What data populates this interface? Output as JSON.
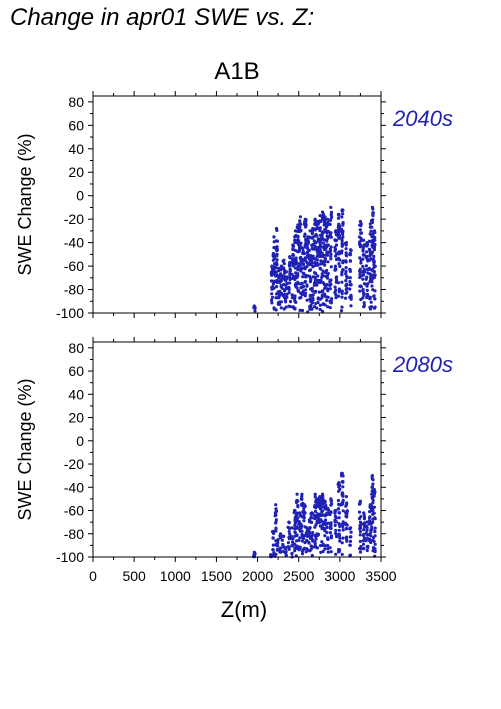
{
  "title": "Change in apr01 SWE vs. Z:",
  "colors": {
    "points": "#1f22b4",
    "period_label": "#1f22b4",
    "axes": "#000000"
  },
  "chart_data": [
    {
      "type": "scatter",
      "title": "A1B",
      "period_label": "2040s",
      "ylabel": "SWE Change (%)",
      "xlabel": "",
      "xlim": [
        0,
        3500
      ],
      "ylim": [
        -100,
        85
      ],
      "xticks": [],
      "yticks": [
        -100,
        -80,
        -60,
        -40,
        -20,
        0,
        20,
        40,
        60,
        80
      ],
      "grid": false,
      "clusters": [
        {
          "x": 1960,
          "ymax": -94
        },
        {
          "x": 2175,
          "ymax": -60
        },
        {
          "x": 2200,
          "ymax": -35
        },
        {
          "x": 2230,
          "ymax": -28
        },
        {
          "x": 2260,
          "ymax": -62
        },
        {
          "x": 2290,
          "ymax": -60
        },
        {
          "x": 2320,
          "ymax": -55
        },
        {
          "x": 2350,
          "ymax": -65
        },
        {
          "x": 2390,
          "ymax": -52
        },
        {
          "x": 2430,
          "ymax": -42
        },
        {
          "x": 2460,
          "ymax": -30
        },
        {
          "x": 2490,
          "ymax": -25
        },
        {
          "x": 2520,
          "ymax": -18
        },
        {
          "x": 2550,
          "ymax": -45
        },
        {
          "x": 2580,
          "ymax": -20
        },
        {
          "x": 2610,
          "ymax": -35
        },
        {
          "x": 2640,
          "ymax": -30
        },
        {
          "x": 2670,
          "ymax": -28
        },
        {
          "x": 2700,
          "ymax": -20
        },
        {
          "x": 2730,
          "ymax": -22
        },
        {
          "x": 2760,
          "ymax": -17
        },
        {
          "x": 2790,
          "ymax": -14
        },
        {
          "x": 2820,
          "ymax": -18
        },
        {
          "x": 2850,
          "ymax": -20
        },
        {
          "x": 2890,
          "ymax": -10
        },
        {
          "x": 2950,
          "ymax": -30
        },
        {
          "x": 2990,
          "ymax": -16
        },
        {
          "x": 3030,
          "ymax": -12
        },
        {
          "x": 3080,
          "ymax": -40
        },
        {
          "x": 3130,
          "ymax": -46
        },
        {
          "x": 3250,
          "ymax": -22
        },
        {
          "x": 3290,
          "ymax": -38
        },
        {
          "x": 3330,
          "ymax": -40
        },
        {
          "x": 3370,
          "ymax": -24
        },
        {
          "x": 3395,
          "ymax": -10
        },
        {
          "x": 3420,
          "ymax": -30
        }
      ]
    },
    {
      "type": "scatter",
      "title": "",
      "period_label": "2080s",
      "ylabel": "SWE Change (%)",
      "xlabel": "Z(m)",
      "xlim": [
        0,
        3500
      ],
      "ylim": [
        -100,
        85
      ],
      "xticks": [
        0,
        500,
        1000,
        1500,
        2000,
        2500,
        3000,
        3500
      ],
      "yticks": [
        -100,
        -80,
        -60,
        -40,
        -20,
        0,
        20,
        40,
        60,
        80
      ],
      "grid": false,
      "clusters": [
        {
          "x": 1960,
          "ymax": -96
        },
        {
          "x": 2160,
          "ymax": -98
        },
        {
          "x": 2190,
          "ymax": -78
        },
        {
          "x": 2220,
          "ymax": -55
        },
        {
          "x": 2250,
          "ymax": -85
        },
        {
          "x": 2280,
          "ymax": -80
        },
        {
          "x": 2310,
          "ymax": -82
        },
        {
          "x": 2340,
          "ymax": -92
        },
        {
          "x": 2380,
          "ymax": -70
        },
        {
          "x": 2420,
          "ymax": -75
        },
        {
          "x": 2450,
          "ymax": -60
        },
        {
          "x": 2480,
          "ymax": -46
        },
        {
          "x": 2510,
          "ymax": -62
        },
        {
          "x": 2540,
          "ymax": -46
        },
        {
          "x": 2570,
          "ymax": -55
        },
        {
          "x": 2600,
          "ymax": -75
        },
        {
          "x": 2630,
          "ymax": -68
        },
        {
          "x": 2660,
          "ymax": -62
        },
        {
          "x": 2700,
          "ymax": -46
        },
        {
          "x": 2730,
          "ymax": -50
        },
        {
          "x": 2760,
          "ymax": -48
        },
        {
          "x": 2790,
          "ymax": -46
        },
        {
          "x": 2820,
          "ymax": -52
        },
        {
          "x": 2850,
          "ymax": -58
        },
        {
          "x": 2890,
          "ymax": -50
        },
        {
          "x": 2950,
          "ymax": -60
        },
        {
          "x": 2990,
          "ymax": -36
        },
        {
          "x": 3030,
          "ymax": -28
        },
        {
          "x": 3080,
          "ymax": -48
        },
        {
          "x": 3130,
          "ymax": -75
        },
        {
          "x": 3250,
          "ymax": -52
        },
        {
          "x": 3290,
          "ymax": -62
        },
        {
          "x": 3330,
          "ymax": -70
        },
        {
          "x": 3370,
          "ymax": -55
        },
        {
          "x": 3395,
          "ymax": -30
        },
        {
          "x": 3420,
          "ymax": -42
        }
      ]
    }
  ]
}
